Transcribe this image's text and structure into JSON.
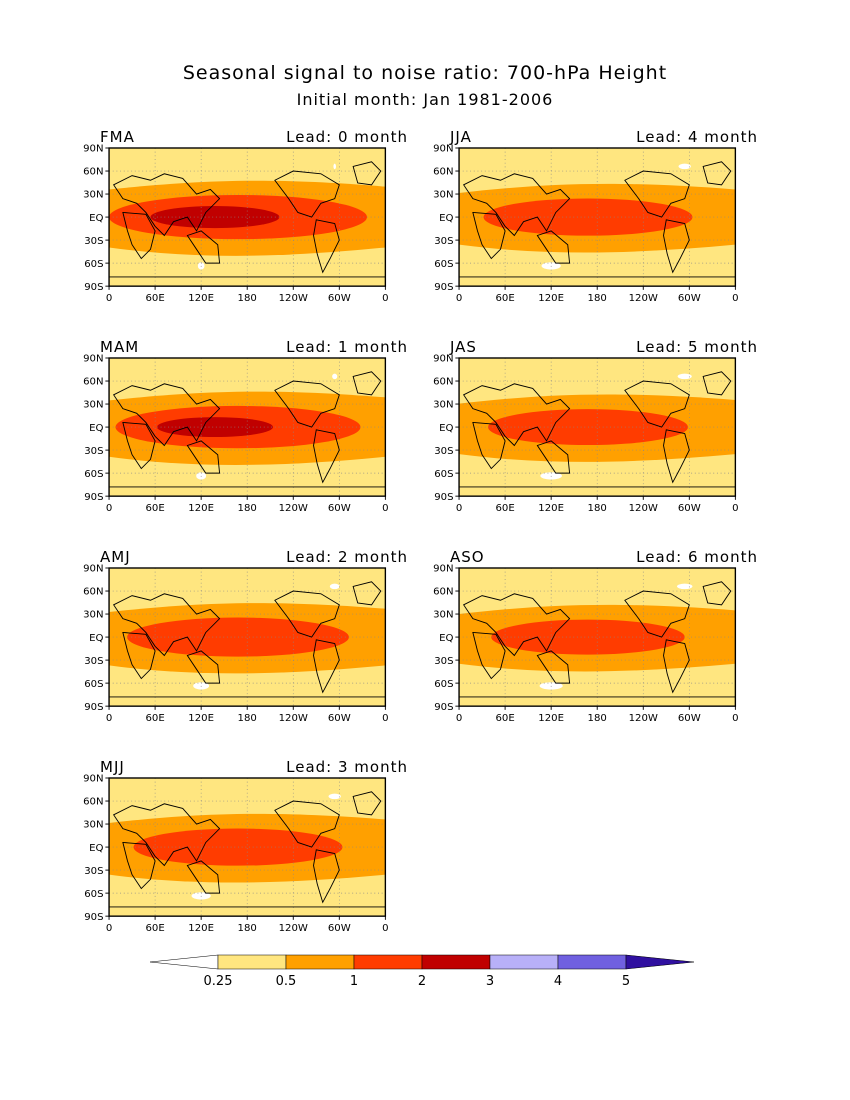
{
  "title": "Seasonal signal to noise ratio: 700-hPa Height",
  "subtitle": "Initial month: Jan 1981-2006",
  "chart_data": [
    {
      "type": "heatmap",
      "season": "FMA",
      "lead": "Lead: 0 month",
      "intensity": 1.0,
      "x_ticks": [
        "0",
        "60E",
        "120E",
        "180",
        "120W",
        "60W",
        "0"
      ],
      "y_ticks": [
        "90N",
        "60N",
        "30N",
        "EQ",
        "30S",
        "60S",
        "90S"
      ]
    },
    {
      "type": "heatmap",
      "season": "JJA",
      "lead": "Lead: 4 month",
      "intensity": 0.62,
      "x_ticks": [
        "0",
        "60E",
        "120E",
        "180",
        "120W",
        "60W",
        "0"
      ],
      "y_ticks": [
        "90N",
        "60N",
        "30N",
        "EQ",
        "30S",
        "60S",
        "90S"
      ]
    },
    {
      "type": "heatmap",
      "season": "MAM",
      "lead": "Lead: 1 month",
      "intensity": 0.9,
      "x_ticks": [
        "0",
        "60E",
        "120E",
        "180",
        "120W",
        "60W",
        "0"
      ],
      "y_ticks": [
        "90N",
        "60N",
        "30N",
        "EQ",
        "30S",
        "60S",
        "90S"
      ]
    },
    {
      "type": "heatmap",
      "season": "JAS",
      "lead": "Lead: 5 month",
      "intensity": 0.55,
      "x_ticks": [
        "0",
        "60E",
        "120E",
        "180",
        "120W",
        "60W",
        "0"
      ],
      "y_ticks": [
        "90N",
        "60N",
        "30N",
        "EQ",
        "30S",
        "60S",
        "90S"
      ]
    },
    {
      "type": "heatmap",
      "season": "AMJ",
      "lead": "Lead: 2 month",
      "intensity": 0.72,
      "x_ticks": [
        "0",
        "60E",
        "120E",
        "180",
        "120W",
        "60W",
        "0"
      ],
      "y_ticks": [
        "90N",
        "60N",
        "30N",
        "EQ",
        "30S",
        "60S",
        "90S"
      ]
    },
    {
      "type": "heatmap",
      "season": "ASO",
      "lead": "Lead: 6 month",
      "intensity": 0.5,
      "x_ticks": [
        "0",
        "60E",
        "120E",
        "180",
        "120W",
        "60W",
        "0"
      ],
      "y_ticks": [
        "90N",
        "60N",
        "30N",
        "EQ",
        "30S",
        "60S",
        "90S"
      ]
    },
    {
      "type": "heatmap",
      "season": "MJJ",
      "lead": "Lead: 3 month",
      "intensity": 0.62,
      "x_ticks": [
        "0",
        "60E",
        "120E",
        "180",
        "120W",
        "60W",
        "0"
      ],
      "y_ticks": [
        "90N",
        "60N",
        "30N",
        "EQ",
        "30S",
        "60S",
        "90S"
      ]
    }
  ],
  "colorbar": {
    "levels": [
      "0.25",
      "0.5",
      "1",
      "2",
      "3",
      "4",
      "5"
    ],
    "colors": [
      "#ffffff",
      "#ffe680",
      "#ffa000",
      "#ff3c00",
      "#c00000",
      "#b8b0f8",
      "#7060e0",
      "#3010a0"
    ]
  }
}
